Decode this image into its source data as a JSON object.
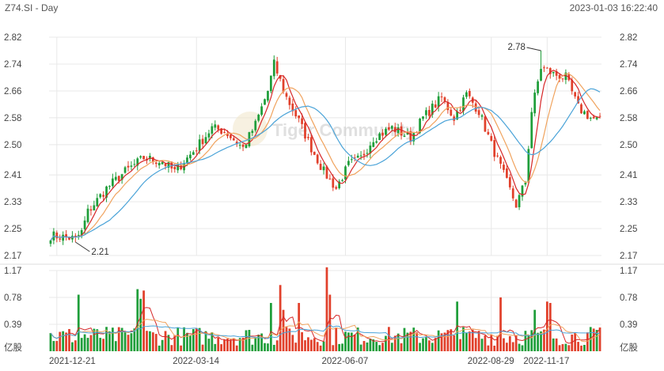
{
  "header": {
    "symbol": "Z74.SI - Day",
    "timestamp": "2023-01-03 16:22:40"
  },
  "watermark": "Tiger Community",
  "colors": {
    "up": "#1f9e3a",
    "down": "#e1402b",
    "ma_fast": "#d62728",
    "ma_mid": "#f0a35e",
    "ma_slow": "#4aa3d8",
    "grid": "#e8e8e8"
  },
  "chart_data": [
    {
      "type": "candlestick",
      "name": "price",
      "y_ticks": [
        "2.82",
        "2.74",
        "2.66",
        "2.58",
        "2.50",
        "2.41",
        "2.33",
        "2.25",
        "2.17"
      ],
      "ylim": [
        2.17,
        2.82
      ],
      "annotations": [
        {
          "label": "2.21",
          "date_index": 8,
          "value": 2.21
        },
        {
          "label": "2.78",
          "date_index": 158,
          "value": 2.78
        }
      ],
      "x_labels": [
        "2021-12-21",
        "2022-03-14",
        "2022-06-07",
        "2022-08-29",
        "2022-11-17"
      ],
      "keypoints": [
        [
          0,
          2.23
        ],
        [
          8,
          2.22
        ],
        [
          10,
          2.24
        ],
        [
          12,
          2.3
        ],
        [
          18,
          2.37
        ],
        [
          24,
          2.42
        ],
        [
          30,
          2.46
        ],
        [
          36,
          2.45
        ],
        [
          40,
          2.42
        ],
        [
          46,
          2.48
        ],
        [
          52,
          2.55
        ],
        [
          56,
          2.54
        ],
        [
          62,
          2.49
        ],
        [
          66,
          2.56
        ],
        [
          70,
          2.66
        ],
        [
          72,
          2.74
        ],
        [
          76,
          2.64
        ],
        [
          80,
          2.57
        ],
        [
          84,
          2.49
        ],
        [
          88,
          2.42
        ],
        [
          92,
          2.37
        ],
        [
          96,
          2.44
        ],
        [
          100,
          2.46
        ],
        [
          104,
          2.52
        ],
        [
          110,
          2.55
        ],
        [
          116,
          2.52
        ],
        [
          120,
          2.58
        ],
        [
          124,
          2.62
        ],
        [
          126,
          2.64
        ],
        [
          130,
          2.58
        ],
        [
          134,
          2.65
        ],
        [
          138,
          2.6
        ],
        [
          142,
          2.5
        ],
        [
          146,
          2.41
        ],
        [
          150,
          2.32
        ],
        [
          153,
          2.39
        ],
        [
          155,
          2.6
        ],
        [
          158,
          2.73
        ],
        [
          162,
          2.71
        ],
        [
          166,
          2.7
        ],
        [
          170,
          2.61
        ],
        [
          174,
          2.58
        ],
        [
          177,
          2.57
        ]
      ],
      "moving_averages": [
        5,
        10,
        20
      ]
    },
    {
      "type": "bar",
      "name": "volume",
      "unit": "亿股",
      "y_ticks": [
        "1.17",
        "0.78",
        "0.39"
      ],
      "ylim": [
        0,
        1.17
      ],
      "spikes": [
        [
          9,
          0.82
        ],
        [
          28,
          0.9
        ],
        [
          29,
          0.76
        ],
        [
          30,
          0.88
        ],
        [
          71,
          0.7
        ],
        [
          74,
          0.96
        ],
        [
          75,
          0.6
        ],
        [
          80,
          0.7
        ],
        [
          89,
          1.22
        ],
        [
          90,
          0.82
        ],
        [
          131,
          0.72
        ],
        [
          145,
          0.78
        ],
        [
          156,
          0.6
        ],
        [
          160,
          0.72
        ],
        [
          161,
          0.7
        ]
      ]
    }
  ]
}
